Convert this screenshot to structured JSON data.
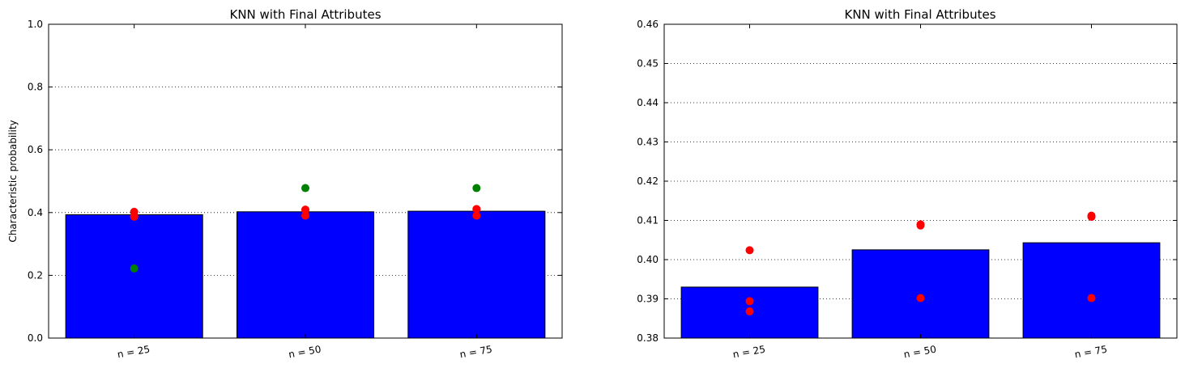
{
  "colors": {
    "bar": "#0000ff",
    "red_point": "#ff0000",
    "green_point": "#008000",
    "grid": "#000000"
  },
  "chart_data": [
    {
      "type": "bar",
      "title": "KNN with Final Attributes",
      "ylabel": "Characteristic probability",
      "xlabel": "",
      "categories": [
        "n = 25",
        "n = 50",
        "n = 75"
      ],
      "values": [
        0.393,
        0.4025,
        0.4043
      ],
      "ylim": [
        0.0,
        1.0
      ],
      "yticks": [
        "0.0",
        "0.2",
        "0.4",
        "0.6",
        "0.8",
        "1.0"
      ],
      "grid": "y-dotted",
      "points": [
        {
          "color": "red",
          "values": [
            [
              0.4024,
              0.3894,
              0.3868
            ],
            [
              0.409,
              0.4087,
              0.3902
            ],
            [
              0.4112,
              0.4109,
              0.3902
            ]
          ]
        },
        {
          "color": "green",
          "values": [
            [
              0.222
            ],
            [
              0.478
            ],
            [
              0.478
            ]
          ]
        }
      ]
    },
    {
      "type": "bar",
      "title": "KNN with Final Attributes",
      "ylabel": "",
      "xlabel": "",
      "categories": [
        "n = 25",
        "n = 50",
        "n = 75"
      ],
      "values": [
        0.393,
        0.4025,
        0.4043
      ],
      "ylim": [
        0.38,
        0.46
      ],
      "yticks": [
        "0.38",
        "0.39",
        "0.40",
        "0.41",
        "0.42",
        "0.43",
        "0.44",
        "0.45",
        "0.46"
      ],
      "grid": "y-dotted",
      "points": [
        {
          "color": "red",
          "values": [
            [
              0.4024,
              0.3894,
              0.3868
            ],
            [
              0.409,
              0.4087,
              0.3902
            ],
            [
              0.4112,
              0.4109,
              0.3902
            ]
          ]
        }
      ]
    }
  ]
}
